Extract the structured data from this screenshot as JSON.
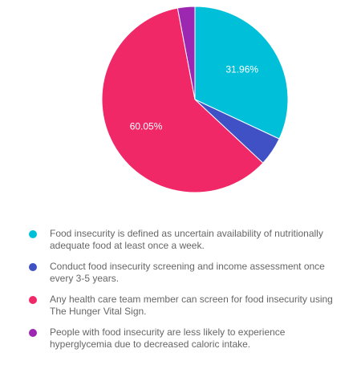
{
  "chart_data": {
    "type": "pie",
    "slices": [
      {
        "label": "Food insecurity is defined as uncertain availability of nutritionally adequate food at least once a week.",
        "value": 31.96,
        "color": "#00c0d9",
        "data_label": "31.96%"
      },
      {
        "label": "Conduct food insecurity screening and income assessment once every 3-5 years.",
        "value": 5.0,
        "color": "#3f51c4",
        "data_label": ""
      },
      {
        "label": "Any health care team member can screen for food insecurity using The Hunger Vital Sign.",
        "value": 60.05,
        "color": "#f02868",
        "data_label": "60.05%"
      },
      {
        "label": "People with food insecurity are less likely to experience hyperglycemia due to decreased caloric intake.",
        "value": 2.99,
        "color": "#9c27b0",
        "data_label": ""
      }
    ],
    "start_angle_deg": 0,
    "legend_position": "bottom"
  }
}
